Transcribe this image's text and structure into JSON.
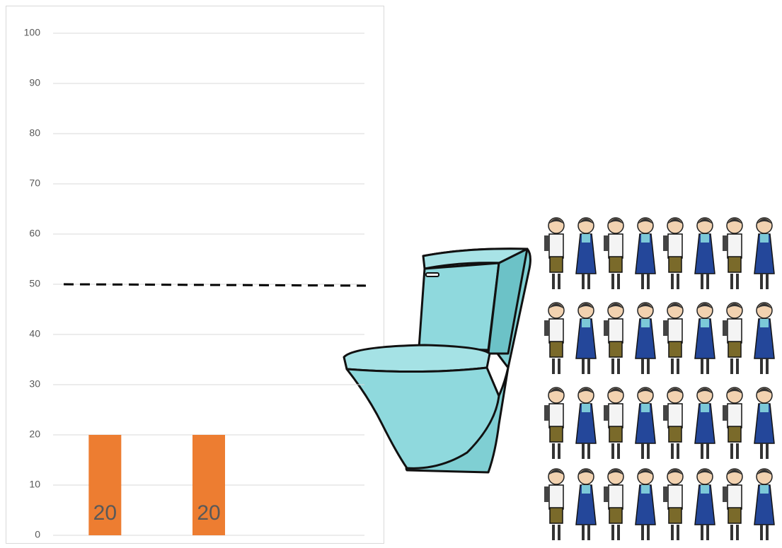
{
  "chart_data": {
    "type": "bar",
    "categories": [
      null,
      null,
      null
    ],
    "values": [
      20,
      20,
      null
    ],
    "color": "#ed7d31",
    "ylim": [
      0,
      100
    ],
    "yticks": [
      0,
      10,
      20,
      30,
      40,
      50,
      60,
      70,
      80,
      90,
      100
    ],
    "grid": true,
    "reference_line": 50
  }
}
